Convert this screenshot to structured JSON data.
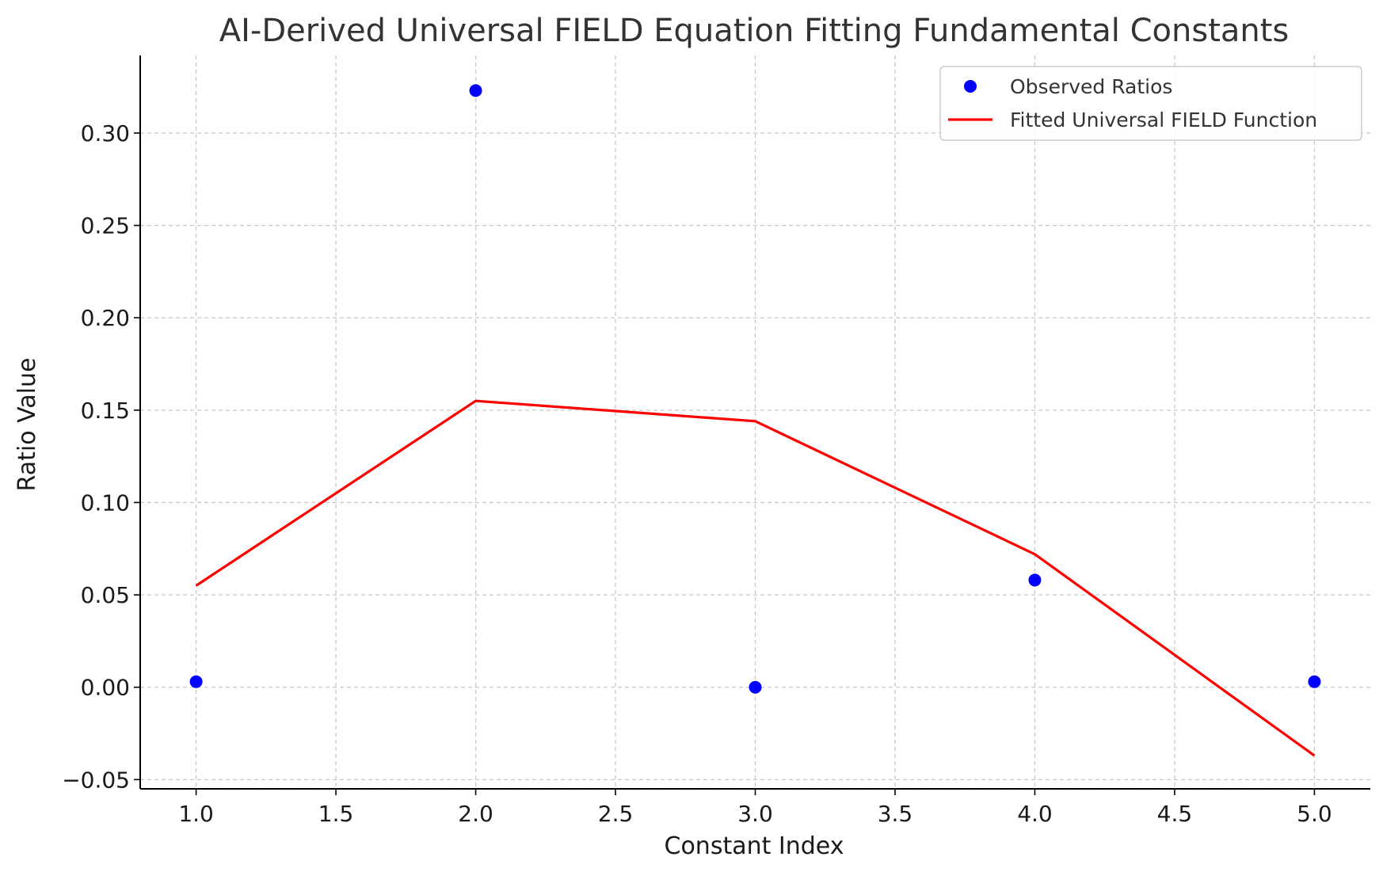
{
  "chart_data": {
    "type": "line+scatter",
    "title": "AI-Derived Universal FIELD Equation Fitting Fundamental Constants",
    "xlabel": "Constant Index",
    "ylabel": "Ratio Value",
    "xlim": [
      0.8,
      5.2
    ],
    "ylim": [
      -0.055,
      0.342
    ],
    "xticks": [
      1.0,
      1.5,
      2.0,
      2.5,
      3.0,
      3.5,
      4.0,
      4.5,
      5.0
    ],
    "xtick_labels": [
      "1.0",
      "1.5",
      "2.0",
      "2.5",
      "3.0",
      "3.5",
      "4.0",
      "4.5",
      "5.0"
    ],
    "yticks": [
      -0.05,
      0.0,
      0.05,
      0.1,
      0.15,
      0.2,
      0.25,
      0.3
    ],
    "ytick_labels": [
      "−0.05",
      "0.00",
      "0.05",
      "0.10",
      "0.15",
      "0.20",
      "0.25",
      "0.30"
    ],
    "grid": true,
    "legend_position": "top-right",
    "series": [
      {
        "name": "Observed Ratios",
        "kind": "scatter",
        "color": "#0000ff",
        "x": [
          1,
          2,
          3,
          4,
          5
        ],
        "y": [
          0.003,
          0.323,
          0.0,
          0.058,
          0.003
        ]
      },
      {
        "name": "Fitted Universal FIELD Function",
        "kind": "line",
        "color": "#ff0000",
        "x": [
          1,
          2,
          3,
          4,
          5
        ],
        "y": [
          0.055,
          0.155,
          0.144,
          0.072,
          -0.037
        ]
      }
    ]
  }
}
